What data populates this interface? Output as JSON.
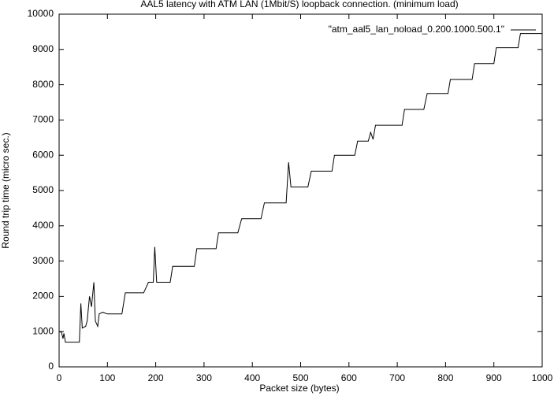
{
  "chart_data": {
    "type": "line",
    "title": "AAL5 latency with ATM LAN (1Mbit/S) loopback connection. (minimum load)",
    "x_label": "Packet size (bytes)",
    "y_label": "Round trip time (micro sec.)",
    "x": [
      0,
      5,
      8,
      10,
      13,
      16,
      42,
      45,
      48,
      55,
      58,
      63,
      67,
      72,
      75,
      80,
      83,
      90,
      100,
      130,
      137,
      175,
      185,
      195,
      198,
      202,
      230,
      235,
      280,
      285,
      325,
      330,
      370,
      378,
      418,
      425,
      470,
      475,
      480,
      515,
      522,
      565,
      570,
      612,
      618,
      640,
      645,
      650,
      655,
      710,
      715,
      755,
      762,
      805,
      810,
      855,
      860,
      900,
      905,
      950,
      955,
      1000
    ],
    "series": [
      {
        "name": "\"atm_aal5_lan_noload_0.200.1000.500.1\"",
        "color": "#000000",
        "values": [
          1000,
          980,
          800,
          950,
          700,
          700,
          700,
          1800,
          1100,
          1150,
          1300,
          2000,
          1700,
          2400,
          1300,
          1150,
          1500,
          1550,
          1500,
          1500,
          2100,
          2100,
          2400,
          2400,
          3400,
          2400,
          2400,
          2850,
          2850,
          3350,
          3350,
          3800,
          3800,
          4200,
          4200,
          4650,
          4650,
          5800,
          5100,
          5100,
          5550,
          5550,
          6000,
          6000,
          6400,
          6400,
          6650,
          6450,
          6850,
          6850,
          7300,
          7300,
          7750,
          7750,
          8150,
          8150,
          8600,
          8600,
          9050,
          9050,
          9450,
          9450
        ]
      }
    ],
    "xlim": [
      0,
      1000
    ],
    "xticks": [
      0,
      100,
      200,
      300,
      400,
      500,
      600,
      700,
      800,
      900,
      1000
    ],
    "ylim": [
      0,
      10000
    ],
    "yticks": [
      0,
      1000,
      2000,
      3000,
      4000,
      5000,
      6000,
      7000,
      8000,
      9000,
      10000
    ],
    "legend": "top-right"
  }
}
